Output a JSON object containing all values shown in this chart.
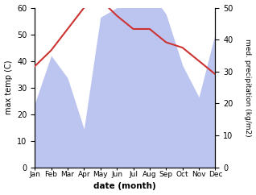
{
  "months": [
    "Jan",
    "Feb",
    "Mar",
    "Apr",
    "May",
    "Jun",
    "Jul",
    "Aug",
    "Sep",
    "Oct",
    "Nov",
    "Dec"
  ],
  "month_indices": [
    0,
    1,
    2,
    3,
    4,
    5,
    6,
    7,
    8,
    9,
    10,
    11
  ],
  "temperature": [
    38,
    44,
    52,
    60,
    63,
    57,
    52,
    52,
    47,
    45,
    40,
    35
  ],
  "precipitation": [
    20,
    35,
    28,
    12,
    47,
    50,
    52,
    55,
    48,
    32,
    22,
    42
  ],
  "temp_color": "#cc3333",
  "precip_fill_color": "#bcc5ef",
  "temp_ylim": [
    0,
    60
  ],
  "precip_ylim": [
    0,
    50
  ],
  "temp_yticks": [
    0,
    10,
    20,
    30,
    40,
    50,
    60
  ],
  "precip_yticks": [
    0,
    10,
    20,
    30,
    40,
    50
  ],
  "ylabel_left": "max temp (C)",
  "ylabel_right": "med. precipitation (kg/m2)",
  "xlabel": "date (month)",
  "figsize": [
    3.18,
    2.42
  ],
  "dpi": 100
}
